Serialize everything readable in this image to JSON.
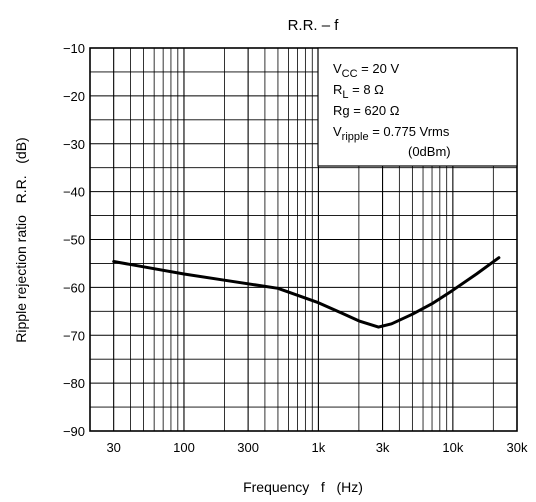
{
  "chart_data": {
    "type": "line",
    "title": "R.R. – f",
    "xlabel": "Frequency   f   (Hz)",
    "ylabel": "Ripple rejection ratio   R.R.   (dB)",
    "xscale": "log",
    "xlim": [
      20,
      30000
    ],
    "ylim": [
      -90,
      -10
    ],
    "x_tick_values": [
      30,
      100,
      300,
      1000,
      3000,
      10000,
      30000
    ],
    "x_tick_labels": [
      "30",
      "100",
      "300",
      "1k",
      "3k",
      "10k",
      "30k"
    ],
    "y_tick_values": [
      -10,
      -20,
      -30,
      -40,
      -50,
      -60,
      -70,
      -80,
      -90
    ],
    "y_tick_labels": [
      "−10",
      "−20",
      "−30",
      "−40",
      "−50",
      "−60",
      "−70",
      "−80",
      "−90"
    ],
    "grid": true,
    "legend_position": "top-right",
    "conditions": {
      "vcc": {
        "main": "V",
        "sub": "CC",
        "rest": " = 20 V"
      },
      "rl": {
        "main": "R",
        "sub": "L",
        "rest": " = 8 Ω"
      },
      "rg": {
        "main": "Rg = 620 Ω"
      },
      "vripple": {
        "main": "V",
        "sub": "ripple",
        "rest": " = 0.775 Vrms"
      },
      "vripple_note": "(0dBm)"
    },
    "series": [
      {
        "x": [
          30,
          50,
          100,
          200,
          500,
          1000,
          1500,
          2000,
          2800,
          3500,
          5000,
          7000,
          10000,
          15000,
          22000
        ],
        "y": [
          -54.6,
          -55.7,
          -57.2,
          -58.5,
          -60.2,
          -63.2,
          -65.4,
          -67.0,
          -68.3,
          -67.6,
          -65.6,
          -63.4,
          -60.6,
          -57.2,
          -53.8
        ]
      }
    ]
  }
}
